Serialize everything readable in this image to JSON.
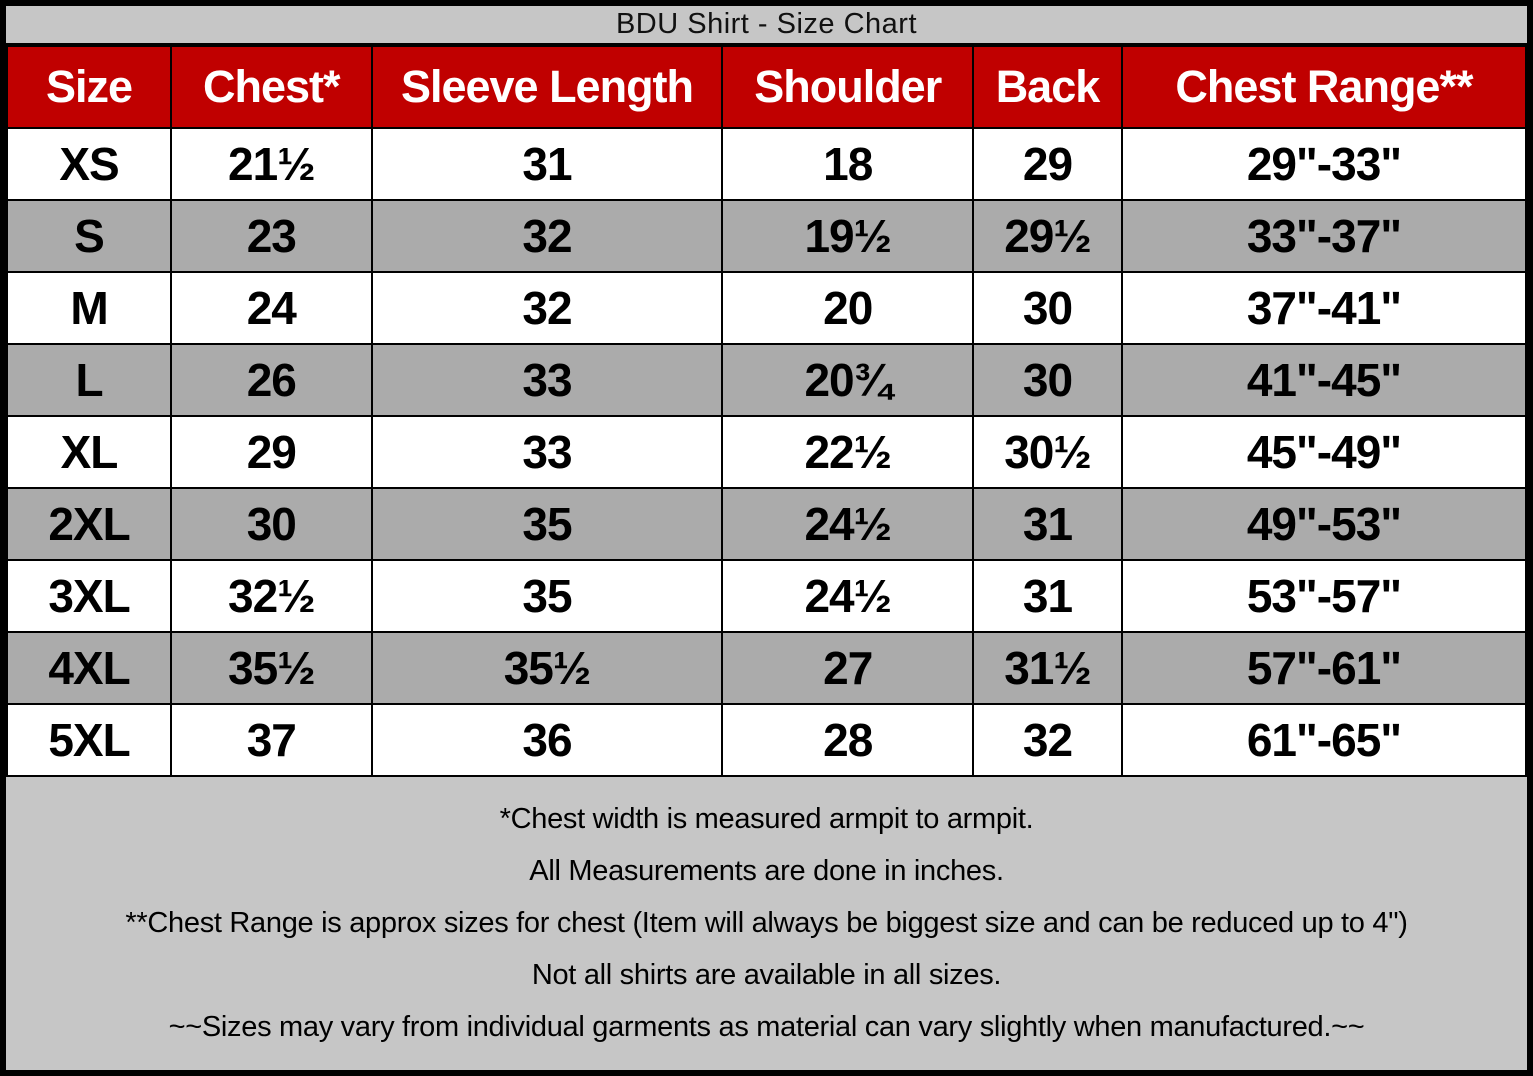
{
  "title": "BDU Shirt - Size Chart",
  "colors": {
    "header_background": "#c00000",
    "header_text": "#ffffff",
    "alt_row_background": "#ababab",
    "title_footer_background": "#c6c6c6",
    "border": "#000000"
  },
  "chart_data": {
    "type": "table",
    "title": "BDU Shirt - Size Chart",
    "columns": [
      "Size",
      "Chest*",
      "Sleeve Length",
      "Shoulder",
      "Back",
      "Chest Range**"
    ],
    "rows": [
      [
        "XS",
        "21½",
        "31",
        "18",
        "29",
        "29\"-33\""
      ],
      [
        "S",
        "23",
        "32",
        "19½",
        "29½",
        "33\"-37\""
      ],
      [
        "M",
        "24",
        "32",
        "20",
        "30",
        "37\"-41\""
      ],
      [
        "L",
        "26",
        "33",
        "20¾",
        "30",
        "41\"-45\""
      ],
      [
        "XL",
        "29",
        "33",
        "22½",
        "30½",
        "45\"-49\""
      ],
      [
        "2XL",
        "30",
        "35",
        "24½",
        "31",
        "49\"-53\""
      ],
      [
        "3XL",
        "32½",
        "35",
        "24½",
        "31",
        "53\"-57\""
      ],
      [
        "4XL",
        "35½",
        "35½",
        "27",
        "31½",
        "57\"-61\""
      ],
      [
        "5XL",
        "37",
        "36",
        "28",
        "32",
        "61\"-65\""
      ]
    ],
    "notes": [
      "*Chest width is measured armpit to armpit.",
      "All Measurements are done in inches.",
      "**Chest Range is approx sizes for chest (Item will always be biggest size and can be reduced up to 4\")",
      "Not all shirts are available in all sizes.",
      "~~Sizes may vary from individual garments as material can vary slightly when manufactured.~~"
    ]
  }
}
